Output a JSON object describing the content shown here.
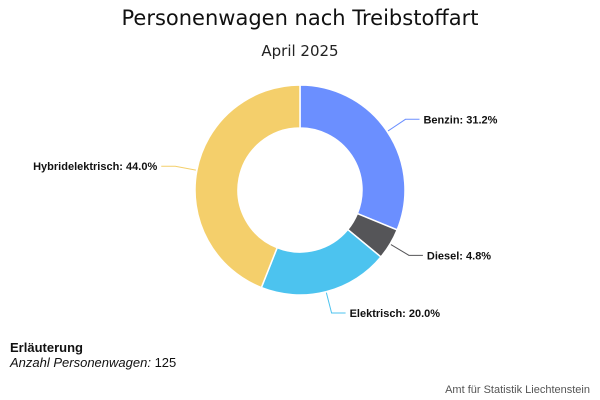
{
  "title": "Personenwagen nach Treibstoffart",
  "subtitle": "April 2025",
  "legend": {
    "title": "Erläuterung",
    "label": "Anzahl Personenwagen:",
    "value": "125"
  },
  "source": "Amt für Statistik Liechtenstein",
  "chart_data": {
    "type": "pie",
    "variant": "donut",
    "title": "Personenwagen nach Treibstoffart",
    "subtitle": "April 2025",
    "unit": "%",
    "slices": [
      {
        "name": "Benzin",
        "value": 31.2,
        "label": "Benzin: 31.2%",
        "color": "#6b8fff"
      },
      {
        "name": "Diesel",
        "value": 4.8,
        "label": "Diesel: 4.8%",
        "color": "#555558"
      },
      {
        "name": "Elektrisch",
        "value": 20.0,
        "label": "Elektrisch: 20.0%",
        "color": "#4cc3ef"
      },
      {
        "name": "Hybridelektrisch",
        "value": 44.0,
        "label": "Hybridelektrisch: 44.0%",
        "color": "#f4cf6b"
      }
    ]
  }
}
